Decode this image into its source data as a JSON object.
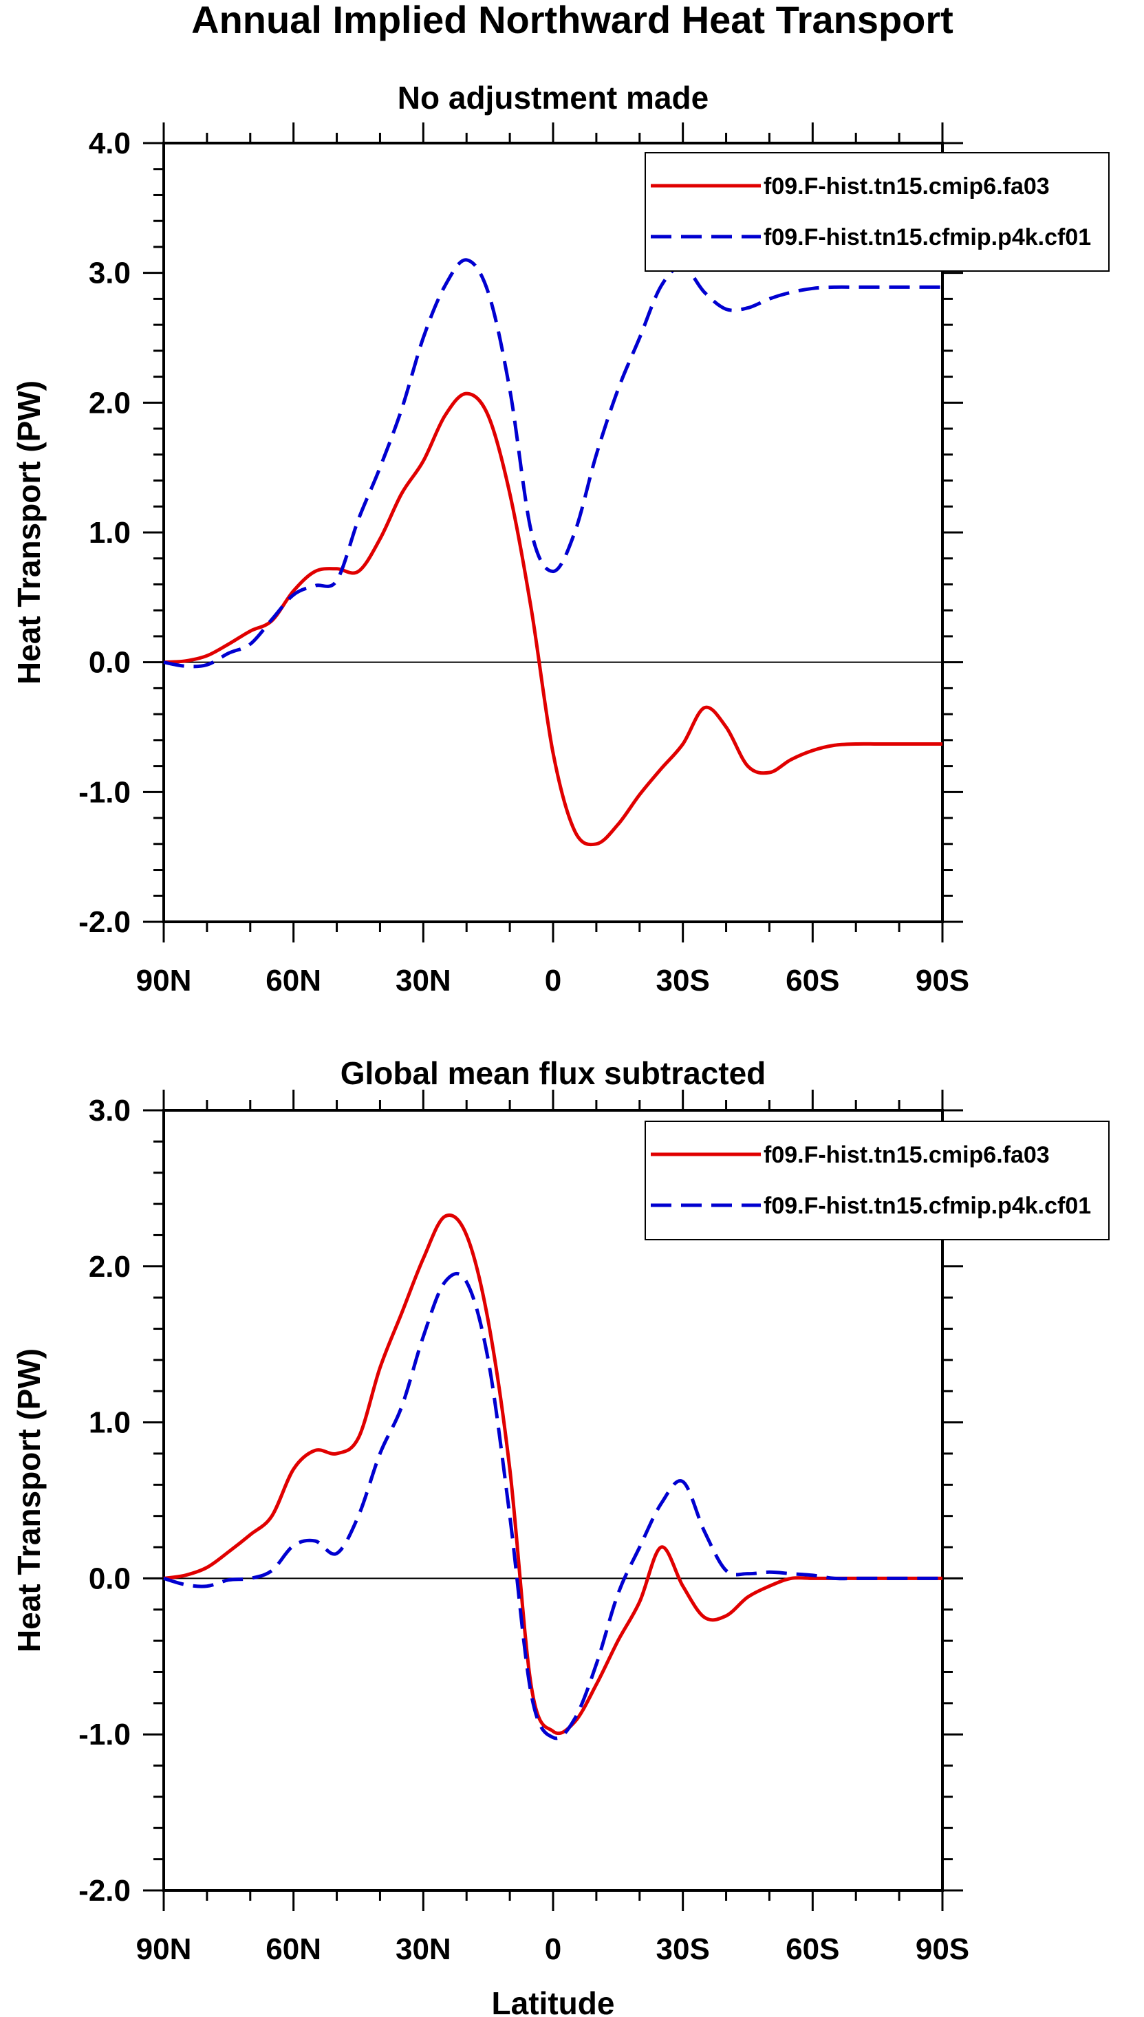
{
  "figure_title": "Annual Implied Northward Heat Transport",
  "colors": {
    "series_1": "#e00000",
    "series_2": "#0000d0",
    "axes": "#000000"
  },
  "chart_data": [
    {
      "type": "line",
      "title": "No adjustment made",
      "xlabel": "",
      "ylabel": "Heat Transport (PW)",
      "xlim": [
        90,
        -90
      ],
      "ylim": [
        -2.0,
        4.0
      ],
      "xticks": [
        90,
        60,
        30,
        0,
        -30,
        -60,
        -90
      ],
      "xtick_labels": [
        "90N",
        "60N",
        "30N",
        "0",
        "30S",
        "60S",
        "90S"
      ],
      "yticks": [
        -2.0,
        -1.0,
        0.0,
        1.0,
        2.0,
        3.0,
        4.0
      ],
      "ytick_labels": [
        "-2.0",
        "-1.0",
        "0.0",
        "1.0",
        "2.0",
        "3.0",
        "4.0"
      ],
      "legend_position": "top-right",
      "series": [
        {
          "name": "f09.F-hist.tn15.cmip6.fa03",
          "style": "solid",
          "x": [
            90,
            85,
            80,
            75,
            70,
            65,
            60,
            55,
            50,
            45,
            40,
            35,
            30,
            25,
            20,
            15,
            10,
            5,
            0,
            -5,
            -10,
            -15,
            -20,
            -25,
            -30,
            -35,
            -40,
            -45,
            -50,
            -55,
            -60,
            -65,
            -70,
            -75,
            -80,
            -85,
            -90
          ],
          "y": [
            0.0,
            0.01,
            0.05,
            0.14,
            0.24,
            0.32,
            0.55,
            0.7,
            0.72,
            0.7,
            0.95,
            1.3,
            1.55,
            1.9,
            2.07,
            1.9,
            1.3,
            0.4,
            -0.7,
            -1.3,
            -1.4,
            -1.25,
            -1.02,
            -0.82,
            -0.63,
            -0.35,
            -0.5,
            -0.8,
            -0.85,
            -0.75,
            -0.68,
            -0.64,
            -0.63,
            -0.63,
            -0.63,
            -0.63,
            -0.63
          ]
        },
        {
          "name": "f09.F-hist.tn15.cfmip.p4k.cf01",
          "style": "dashed",
          "x": [
            90,
            85,
            80,
            75,
            70,
            65,
            60,
            55,
            50,
            45,
            40,
            35,
            30,
            25,
            20,
            15,
            10,
            5,
            0,
            -5,
            -10,
            -15,
            -20,
            -25,
            -30,
            -35,
            -40,
            -45,
            -50,
            -55,
            -60,
            -65,
            -70,
            -75,
            -80,
            -85,
            -90
          ],
          "y": [
            0.0,
            -0.03,
            -0.02,
            0.07,
            0.14,
            0.33,
            0.52,
            0.59,
            0.63,
            1.1,
            1.5,
            1.95,
            2.5,
            2.9,
            3.1,
            2.85,
            2.1,
            1.0,
            0.7,
            1.0,
            1.6,
            2.1,
            2.5,
            2.9,
            3.05,
            2.85,
            2.72,
            2.73,
            2.8,
            2.85,
            2.88,
            2.89,
            2.89,
            2.89,
            2.89,
            2.89,
            2.89
          ]
        }
      ]
    },
    {
      "type": "line",
      "title": "Global mean flux subtracted",
      "xlabel": "Latitude",
      "ylabel": "Heat Transport (PW)",
      "xlim": [
        90,
        -90
      ],
      "ylim": [
        -2.0,
        3.0
      ],
      "xticks": [
        90,
        60,
        30,
        0,
        -30,
        -60,
        -90
      ],
      "xtick_labels": [
        "90N",
        "60N",
        "30N",
        "0",
        "30S",
        "60S",
        "90S"
      ],
      "yticks": [
        -2.0,
        -1.0,
        0.0,
        1.0,
        2.0,
        3.0
      ],
      "ytick_labels": [
        "-2.0",
        "-1.0",
        "0.0",
        "1.0",
        "2.0",
        "3.0"
      ],
      "legend_position": "top-right",
      "series": [
        {
          "name": "f09.F-hist.tn15.cmip6.fa03",
          "style": "solid",
          "x": [
            90,
            85,
            80,
            75,
            70,
            65,
            60,
            55,
            50,
            45,
            40,
            35,
            30,
            25,
            20,
            15,
            10,
            5,
            0,
            -5,
            -10,
            -15,
            -20,
            -25,
            -30,
            -35,
            -40,
            -45,
            -50,
            -55,
            -60,
            -65,
            -70,
            -75,
            -80,
            -85,
            -90
          ],
          "y": [
            0.0,
            0.02,
            0.07,
            0.17,
            0.28,
            0.4,
            0.7,
            0.82,
            0.8,
            0.9,
            1.35,
            1.7,
            2.05,
            2.32,
            2.2,
            1.65,
            0.7,
            -0.7,
            -0.98,
            -0.92,
            -0.68,
            -0.4,
            -0.15,
            0.2,
            -0.05,
            -0.25,
            -0.24,
            -0.12,
            -0.05,
            0.0,
            0.0,
            0.0,
            0.0,
            0.0,
            0.0,
            0.0,
            0.0
          ]
        },
        {
          "name": "f09.F-hist.tn15.cfmip.p4k.cf01",
          "style": "dashed",
          "x": [
            90,
            85,
            80,
            75,
            70,
            65,
            60,
            55,
            50,
            45,
            40,
            35,
            30,
            25,
            20,
            15,
            10,
            5,
            0,
            -5,
            -10,
            -15,
            -20,
            -25,
            -30,
            -35,
            -40,
            -45,
            -50,
            -55,
            -60,
            -65,
            -70,
            -75,
            -80,
            -85,
            -90
          ],
          "y": [
            0.0,
            -0.04,
            -0.05,
            -0.01,
            0.0,
            0.05,
            0.21,
            0.24,
            0.16,
            0.4,
            0.8,
            1.1,
            1.55,
            1.9,
            1.9,
            1.4,
            0.4,
            -0.75,
            -1.02,
            -0.9,
            -0.55,
            -0.1,
            0.2,
            0.48,
            0.62,
            0.3,
            0.05,
            0.03,
            0.04,
            0.03,
            0.02,
            0.0,
            0.0,
            0.0,
            0.0,
            0.0,
            0.0
          ]
        }
      ]
    }
  ]
}
